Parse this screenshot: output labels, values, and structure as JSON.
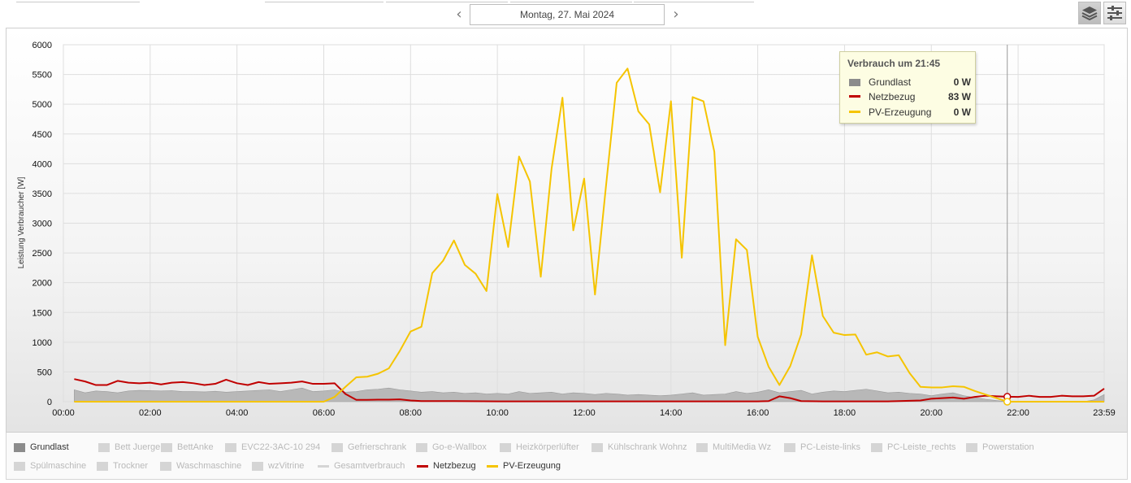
{
  "date_nav": {
    "date_label": "Montag, 27. Mai 2024",
    "prev_icon": "chevron-left-icon",
    "next_icon": "chevron-right-icon"
  },
  "toolbar": {
    "stack_icon": "layers-icon",
    "settings_icon": "sliders-icon"
  },
  "legend": {
    "items": [
      {
        "label": "Grundlast",
        "active": true,
        "kind": "area",
        "color": "#8c8c8c"
      },
      {
        "label": "Bett Juergen",
        "active": false,
        "kind": "area",
        "color": "#d5d5d5"
      },
      {
        "label": "BettAnke",
        "active": false,
        "kind": "area",
        "color": "#d5d5d5"
      },
      {
        "label": "EVC22-3AC-10 294",
        "active": false,
        "kind": "area",
        "color": "#d5d5d5"
      },
      {
        "label": "Gefrierschrank",
        "active": false,
        "kind": "area",
        "color": "#d5d5d5"
      },
      {
        "label": "Go-e-Wallbox",
        "active": false,
        "kind": "area",
        "color": "#d5d5d5"
      },
      {
        "label": "Heizkörperlüfter",
        "active": false,
        "kind": "area",
        "color": "#d5d5d5"
      },
      {
        "label": "Kühlschrank Wohnz",
        "active": false,
        "kind": "area",
        "color": "#d5d5d5"
      },
      {
        "label": "MultiMedia Wz",
        "active": false,
        "kind": "area",
        "color": "#d5d5d5"
      },
      {
        "label": "PC-Leiste-links",
        "active": false,
        "kind": "area",
        "color": "#d5d5d5"
      },
      {
        "label": "PC-Leiste_rechts",
        "active": false,
        "kind": "area",
        "color": "#d5d5d5"
      },
      {
        "label": "Powerstation",
        "active": false,
        "kind": "area",
        "color": "#d5d5d5"
      },
      {
        "label": "Spülmaschine",
        "active": false,
        "kind": "area",
        "color": "#d5d5d5"
      },
      {
        "label": "Trockner",
        "active": false,
        "kind": "area",
        "color": "#d5d5d5"
      },
      {
        "label": "Waschmaschine",
        "active": false,
        "kind": "area",
        "color": "#d5d5d5"
      },
      {
        "label": "wzVitrine",
        "active": false,
        "kind": "area",
        "color": "#d5d5d5"
      },
      {
        "label": "Gesamtverbrauch",
        "active": false,
        "kind": "line",
        "color": "#d5d5d5"
      },
      {
        "label": "Netzbezug",
        "active": true,
        "kind": "line",
        "color": "#c00000"
      },
      {
        "label": "PV-Erzeugung",
        "active": true,
        "kind": "line",
        "color": "#f5c400"
      }
    ]
  },
  "tooltip": {
    "title": "Verbrauch um 21:45",
    "rows": [
      {
        "label": "Grundlast",
        "value": "0 W",
        "color": "#8c8c8c",
        "kind": "area"
      },
      {
        "label": "Netzbezug",
        "value": "83 W",
        "color": "#c00000",
        "kind": "line"
      },
      {
        "label": "PV-Erzeugung",
        "value": "0 W",
        "color": "#f5c400",
        "kind": "line"
      }
    ]
  },
  "chart_data": {
    "type": "line",
    "title": "",
    "xlabel": "",
    "ylabel": "Leistung Verbraucher [W]",
    "xlim": [
      "00:00",
      "23:59"
    ],
    "ylim": [
      0,
      6000
    ],
    "x_ticks": [
      "00:00",
      "02:00",
      "04:00",
      "06:00",
      "08:00",
      "10:00",
      "12:00",
      "14:00",
      "16:00",
      "18:00",
      "20:00",
      "22:00",
      "23:59"
    ],
    "y_ticks": [
      0,
      500,
      1000,
      1500,
      2000,
      2500,
      3000,
      3500,
      4000,
      4500,
      5000,
      5500,
      6000
    ],
    "grid": true,
    "legend_position": "bottom",
    "crosshair_time": "21:45",
    "series": [
      {
        "name": "Grundlast",
        "type": "area",
        "color": "#8c8c8c",
        "points": [
          [
            "00:15",
            200
          ],
          [
            "00:30",
            150
          ],
          [
            "00:45",
            180
          ],
          [
            "01:00",
            170
          ],
          [
            "01:15",
            150
          ],
          [
            "01:30",
            180
          ],
          [
            "01:45",
            190
          ],
          [
            "02:00",
            185
          ],
          [
            "02:15",
            180
          ],
          [
            "02:30",
            185
          ],
          [
            "02:45",
            170
          ],
          [
            "03:00",
            170
          ],
          [
            "03:15",
            165
          ],
          [
            "03:30",
            175
          ],
          [
            "03:45",
            160
          ],
          [
            "04:00",
            170
          ],
          [
            "04:15",
            180
          ],
          [
            "04:30",
            190
          ],
          [
            "04:45",
            200
          ],
          [
            "05:00",
            170
          ],
          [
            "05:15",
            200
          ],
          [
            "05:30",
            230
          ],
          [
            "05:45",
            170
          ],
          [
            "06:00",
            180
          ],
          [
            "06:15",
            200
          ],
          [
            "06:30",
            160
          ],
          [
            "06:45",
            170
          ],
          [
            "07:00",
            200
          ],
          [
            "07:15",
            210
          ],
          [
            "07:30",
            230
          ],
          [
            "07:45",
            200
          ],
          [
            "08:00",
            180
          ],
          [
            "08:15",
            160
          ],
          [
            "08:30",
            170
          ],
          [
            "08:45",
            150
          ],
          [
            "09:00",
            160
          ],
          [
            "09:15",
            140
          ],
          [
            "09:30",
            150
          ],
          [
            "09:45",
            130
          ],
          [
            "10:00",
            140
          ],
          [
            "10:15",
            130
          ],
          [
            "10:30",
            170
          ],
          [
            "10:45",
            140
          ],
          [
            "11:00",
            150
          ],
          [
            "11:15",
            160
          ],
          [
            "11:30",
            130
          ],
          [
            "11:45",
            150
          ],
          [
            "12:00",
            140
          ],
          [
            "12:15",
            120
          ],
          [
            "12:30",
            140
          ],
          [
            "12:45",
            130
          ],
          [
            "13:00",
            110
          ],
          [
            "13:15",
            120
          ],
          [
            "13:30",
            110
          ],
          [
            "13:45",
            100
          ],
          [
            "14:00",
            110
          ],
          [
            "14:15",
            130
          ],
          [
            "14:30",
            150
          ],
          [
            "14:45",
            110
          ],
          [
            "15:00",
            120
          ],
          [
            "15:15",
            130
          ],
          [
            "15:30",
            170
          ],
          [
            "15:45",
            140
          ],
          [
            "16:00",
            160
          ],
          [
            "16:15",
            200
          ],
          [
            "16:30",
            150
          ],
          [
            "16:45",
            170
          ],
          [
            "17:00",
            190
          ],
          [
            "17:15",
            130
          ],
          [
            "17:30",
            160
          ],
          [
            "17:45",
            180
          ],
          [
            "18:00",
            170
          ],
          [
            "18:15",
            190
          ],
          [
            "18:30",
            210
          ],
          [
            "18:45",
            180
          ],
          [
            "19:00",
            150
          ],
          [
            "19:15",
            160
          ],
          [
            "19:30",
            140
          ],
          [
            "19:45",
            130
          ],
          [
            "20:00",
            100
          ],
          [
            "20:15",
            130
          ],
          [
            "20:30",
            150
          ],
          [
            "20:45",
            100
          ],
          [
            "21:00",
            70
          ],
          [
            "21:15",
            40
          ],
          [
            "21:30",
            20
          ],
          [
            "21:45",
            0
          ],
          [
            "22:00",
            0
          ],
          [
            "22:15",
            0
          ],
          [
            "22:30",
            0
          ],
          [
            "22:45",
            0
          ],
          [
            "23:00",
            0
          ],
          [
            "23:15",
            0
          ],
          [
            "23:30",
            0
          ],
          [
            "23:45",
            30
          ],
          [
            "23:59",
            120
          ]
        ]
      },
      {
        "name": "Netzbezug",
        "type": "line",
        "color": "#c00000",
        "points": [
          [
            "00:15",
            380
          ],
          [
            "00:30",
            340
          ],
          [
            "00:45",
            280
          ],
          [
            "01:00",
            280
          ],
          [
            "01:15",
            350
          ],
          [
            "01:30",
            320
          ],
          [
            "01:45",
            310
          ],
          [
            "02:00",
            320
          ],
          [
            "02:15",
            290
          ],
          [
            "02:30",
            320
          ],
          [
            "02:45",
            330
          ],
          [
            "03:00",
            310
          ],
          [
            "03:15",
            280
          ],
          [
            "03:30",
            300
          ],
          [
            "03:45",
            370
          ],
          [
            "04:00",
            310
          ],
          [
            "04:15",
            280
          ],
          [
            "04:30",
            330
          ],
          [
            "04:45",
            300
          ],
          [
            "05:00",
            310
          ],
          [
            "05:15",
            320
          ],
          [
            "05:30",
            340
          ],
          [
            "05:45",
            300
          ],
          [
            "06:00",
            300
          ],
          [
            "06:15",
            310
          ],
          [
            "06:30",
            130
          ],
          [
            "06:45",
            30
          ],
          [
            "07:00",
            30
          ],
          [
            "07:15",
            35
          ],
          [
            "07:30",
            35
          ],
          [
            "07:45",
            40
          ],
          [
            "08:00",
            20
          ],
          [
            "08:15",
            10
          ],
          [
            "08:30",
            10
          ],
          [
            "09:00",
            10
          ],
          [
            "10:00",
            5
          ],
          [
            "12:00",
            5
          ],
          [
            "14:00",
            5
          ],
          [
            "16:00",
            5
          ],
          [
            "16:15",
            10
          ],
          [
            "16:30",
            90
          ],
          [
            "16:45",
            60
          ],
          [
            "17:00",
            10
          ],
          [
            "17:30",
            5
          ],
          [
            "18:00",
            5
          ],
          [
            "19:00",
            5
          ],
          [
            "19:45",
            20
          ],
          [
            "20:00",
            50
          ],
          [
            "20:15",
            60
          ],
          [
            "20:30",
            70
          ],
          [
            "20:45",
            50
          ],
          [
            "21:00",
            80
          ],
          [
            "21:15",
            100
          ],
          [
            "21:30",
            90
          ],
          [
            "21:45",
            83
          ],
          [
            "22:00",
            80
          ],
          [
            "22:15",
            100
          ],
          [
            "22:30",
            80
          ],
          [
            "22:45",
            80
          ],
          [
            "23:00",
            100
          ],
          [
            "23:15",
            90
          ],
          [
            "23:30",
            90
          ],
          [
            "23:45",
            100
          ],
          [
            "23:59",
            220
          ]
        ]
      },
      {
        "name": "PV-Erzeugung",
        "type": "line",
        "color": "#f5c400",
        "points": [
          [
            "00:15",
            0
          ],
          [
            "06:00",
            0
          ],
          [
            "06:15",
            80
          ],
          [
            "06:30",
            250
          ],
          [
            "06:45",
            410
          ],
          [
            "07:00",
            420
          ],
          [
            "07:15",
            470
          ],
          [
            "07:30",
            560
          ],
          [
            "07:45",
            850
          ],
          [
            "08:00",
            1180
          ],
          [
            "08:15",
            1260
          ],
          [
            "08:30",
            2160
          ],
          [
            "08:45",
            2370
          ],
          [
            "09:00",
            2710
          ],
          [
            "09:15",
            2300
          ],
          [
            "09:30",
            2150
          ],
          [
            "09:45",
            1860
          ],
          [
            "10:00",
            3490
          ],
          [
            "10:15",
            2600
          ],
          [
            "10:30",
            4120
          ],
          [
            "10:45",
            3700
          ],
          [
            "11:00",
            2100
          ],
          [
            "11:15",
            3920
          ],
          [
            "11:30",
            5110
          ],
          [
            "11:45",
            2880
          ],
          [
            "12:00",
            3750
          ],
          [
            "12:15",
            1800
          ],
          [
            "12:30",
            3600
          ],
          [
            "12:45",
            5360
          ],
          [
            "13:00",
            5600
          ],
          [
            "13:15",
            4880
          ],
          [
            "13:30",
            4660
          ],
          [
            "13:45",
            3520
          ],
          [
            "14:00",
            5050
          ],
          [
            "14:15",
            2420
          ],
          [
            "14:30",
            5120
          ],
          [
            "14:45",
            5050
          ],
          [
            "15:00",
            4200
          ],
          [
            "15:15",
            950
          ],
          [
            "15:30",
            2730
          ],
          [
            "15:45",
            2550
          ],
          [
            "16:00",
            1090
          ],
          [
            "16:15",
            590
          ],
          [
            "16:30",
            280
          ],
          [
            "16:45",
            600
          ],
          [
            "17:00",
            1130
          ],
          [
            "17:15",
            2460
          ],
          [
            "17:30",
            1440
          ],
          [
            "17:45",
            1160
          ],
          [
            "18:00",
            1120
          ],
          [
            "18:15",
            1130
          ],
          [
            "18:30",
            790
          ],
          [
            "18:45",
            830
          ],
          [
            "19:00",
            760
          ],
          [
            "19:15",
            780
          ],
          [
            "19:30",
            480
          ],
          [
            "19:45",
            250
          ],
          [
            "20:00",
            240
          ],
          [
            "20:15",
            240
          ],
          [
            "20:30",
            260
          ],
          [
            "20:45",
            250
          ],
          [
            "21:00",
            180
          ],
          [
            "21:15",
            120
          ],
          [
            "21:30",
            60
          ],
          [
            "21:45",
            0
          ],
          [
            "22:00",
            0
          ],
          [
            "23:59",
            0
          ]
        ]
      }
    ]
  }
}
